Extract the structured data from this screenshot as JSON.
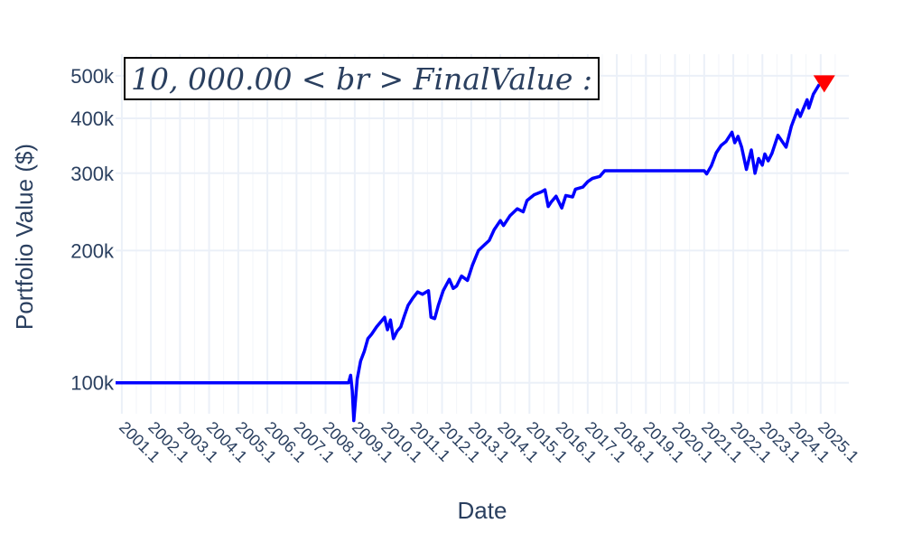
{
  "chart_data": {
    "type": "line",
    "title": "",
    "xlabel": "Date",
    "ylabel": "Portfolio Value ($)",
    "y_scale": "log",
    "ylim": [
      85000,
      560000
    ],
    "xlim": [
      "2000-10-15",
      "2025-12-20"
    ],
    "y_ticks": [
      {
        "value": 100000,
        "label": "100k"
      },
      {
        "value": 200000,
        "label": "200k"
      },
      {
        "value": 300000,
        "label": "300k"
      },
      {
        "value": 400000,
        "label": "400k"
      },
      {
        "value": 500000,
        "label": "500k"
      }
    ],
    "x_ticks": [
      {
        "date": "2001-01-01",
        "label": "2001.1"
      },
      {
        "date": "2002-01-01",
        "label": "2002.1"
      },
      {
        "date": "2003-01-01",
        "label": "2003.1"
      },
      {
        "date": "2004-01-01",
        "label": "2004.1"
      },
      {
        "date": "2005-01-01",
        "label": "2005.1"
      },
      {
        "date": "2006-01-01",
        "label": "2006.1"
      },
      {
        "date": "2007-01-01",
        "label": "2007.1"
      },
      {
        "date": "2008-01-01",
        "label": "2008.1"
      },
      {
        "date": "2009-01-01",
        "label": "2009.1"
      },
      {
        "date": "2010-01-01",
        "label": "2010.1"
      },
      {
        "date": "2011-01-01",
        "label": "2011.1"
      },
      {
        "date": "2012-01-01",
        "label": "2012.1"
      },
      {
        "date": "2013-01-01",
        "label": "2013.1"
      },
      {
        "date": "2014-01-01",
        "label": "2014.1"
      },
      {
        "date": "2015-01-01",
        "label": "2015.1"
      },
      {
        "date": "2016-01-01",
        "label": "2016.1"
      },
      {
        "date": "2017-01-01",
        "label": "2017.1"
      },
      {
        "date": "2018-01-01",
        "label": "2018.1"
      },
      {
        "date": "2019-01-01",
        "label": "2019.1"
      },
      {
        "date": "2020-01-01",
        "label": "2020.1"
      },
      {
        "date": "2021-01-01",
        "label": "2021.1"
      },
      {
        "date": "2022-01-01",
        "label": "2022.1"
      },
      {
        "date": "2023-01-01",
        "label": "2023.1"
      },
      {
        "date": "2024-01-01",
        "label": "2024.1"
      },
      {
        "date": "2025-01-01",
        "label": "2025.1"
      }
    ],
    "grid": true,
    "series": [
      {
        "color": "#0000ff",
        "points": [
          [
            "2000-10-15",
            100000
          ],
          [
            "2008-10-15",
            100000
          ],
          [
            "2008-11-10",
            104000
          ],
          [
            "2008-12-01",
            96000
          ],
          [
            "2008-12-20",
            82000
          ],
          [
            "2009-02-01",
            102000
          ],
          [
            "2009-03-15",
            112000
          ],
          [
            "2009-05-01",
            118000
          ],
          [
            "2009-06-15",
            126000
          ],
          [
            "2009-08-01",
            129000
          ],
          [
            "2009-10-01",
            134000
          ],
          [
            "2009-11-15",
            137000
          ],
          [
            "2010-01-10",
            141000
          ],
          [
            "2010-02-15",
            132000
          ],
          [
            "2010-03-25",
            139000
          ],
          [
            "2010-05-01",
            126000
          ],
          [
            "2010-06-15",
            131000
          ],
          [
            "2010-08-01",
            134000
          ],
          [
            "2010-09-15",
            142000
          ],
          [
            "2010-11-01",
            150000
          ],
          [
            "2011-01-01",
            156000
          ],
          [
            "2011-03-01",
            161000
          ],
          [
            "2011-05-01",
            159000
          ],
          [
            "2011-07-15",
            162000
          ],
          [
            "2011-08-15",
            141000
          ],
          [
            "2011-10-01",
            140000
          ],
          [
            "2011-11-15",
            150000
          ],
          [
            "2012-01-15",
            162000
          ],
          [
            "2012-04-01",
            172000
          ],
          [
            "2012-05-20",
            164000
          ],
          [
            "2012-07-01",
            166000
          ],
          [
            "2012-09-01",
            175000
          ],
          [
            "2012-11-15",
            171000
          ],
          [
            "2013-01-15",
            185000
          ],
          [
            "2013-04-01",
            200000
          ],
          [
            "2013-06-15",
            206000
          ],
          [
            "2013-08-15",
            211000
          ],
          [
            "2013-10-15",
            223000
          ],
          [
            "2014-01-01",
            234000
          ],
          [
            "2014-02-10",
            228000
          ],
          [
            "2014-05-01",
            240000
          ],
          [
            "2014-08-01",
            249000
          ],
          [
            "2014-10-15",
            245000
          ],
          [
            "2014-12-01",
            260000
          ],
          [
            "2015-03-01",
            268000
          ],
          [
            "2015-06-01",
            272000
          ],
          [
            "2015-07-15",
            275000
          ],
          [
            "2015-08-25",
            252000
          ],
          [
            "2015-10-01",
            258000
          ],
          [
            "2015-12-01",
            266000
          ],
          [
            "2016-02-10",
            250000
          ],
          [
            "2016-04-01",
            267000
          ],
          [
            "2016-06-25",
            265000
          ],
          [
            "2016-08-01",
            276000
          ],
          [
            "2016-11-01",
            279000
          ],
          [
            "2017-01-01",
            287000
          ],
          [
            "2017-03-01",
            292000
          ],
          [
            "2017-06-01",
            295000
          ],
          [
            "2017-08-01",
            304000
          ],
          [
            "2018-06-01",
            304000
          ],
          [
            "2021-01-01",
            304000
          ],
          [
            "2021-02-01",
            299000
          ],
          [
            "2021-04-01",
            312000
          ],
          [
            "2021-06-01",
            334000
          ],
          [
            "2021-08-01",
            347000
          ],
          [
            "2021-10-01",
            354000
          ],
          [
            "2021-12-15",
            372000
          ],
          [
            "2022-01-20",
            352000
          ],
          [
            "2022-03-01",
            364000
          ],
          [
            "2022-04-15",
            344000
          ],
          [
            "2022-06-15",
            306000
          ],
          [
            "2022-08-15",
            339000
          ],
          [
            "2022-09-30",
            300000
          ],
          [
            "2022-11-15",
            324000
          ],
          [
            "2022-12-31",
            313000
          ],
          [
            "2023-02-01",
            332000
          ],
          [
            "2023-03-15",
            320000
          ],
          [
            "2023-05-01",
            333000
          ],
          [
            "2023-07-15",
            366000
          ],
          [
            "2023-10-25",
            344000
          ],
          [
            "2023-12-31",
            384000
          ],
          [
            "2024-03-15",
            418000
          ],
          [
            "2024-04-20",
            404000
          ],
          [
            "2024-07-15",
            441000
          ],
          [
            "2024-08-05",
            422000
          ],
          [
            "2024-10-01",
            454000
          ],
          [
            "2024-12-15",
            478000
          ]
        ]
      }
    ],
    "end_marker": {
      "x": "2025-02-15",
      "y": 485000,
      "color": "#ff0000",
      "shape": "triangle-down"
    },
    "annotation": {
      "text": "10, 000.00 < br > FinalValue :",
      "has_border": true
    }
  }
}
